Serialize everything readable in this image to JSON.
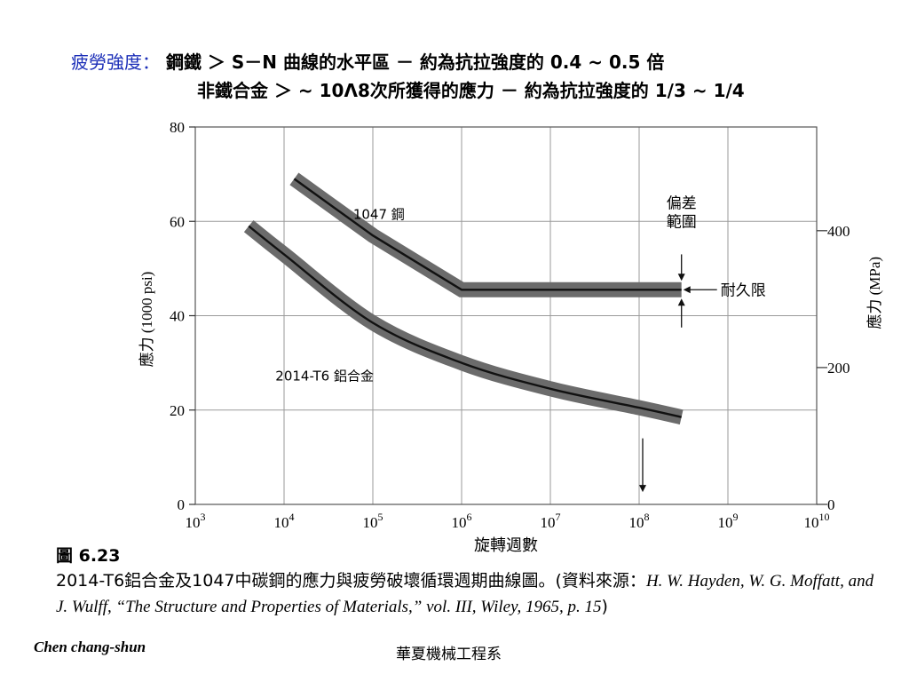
{
  "header": {
    "line1_label": "疲勞強度：",
    "line1_text": "鋼鐵 ＞ S－N 曲線的水平區 － 約為抗拉強度的 0.4 ~ 0.5 倍",
    "line2_text": "非鐵合金 ＞ ~ 10Λ8次所獲得的應力 － 約為抗拉強度的 1/3 ~ 1/4"
  },
  "chart_data": {
    "type": "line",
    "xlabel": "旋轉週數",
    "ylabel": "應力 (1000 psi)",
    "ylabel_right": "應力 (MPa)",
    "x_scale": "log",
    "xlim": [
      1000,
      10000000000
    ],
    "ylim": [
      0,
      80
    ],
    "y2lim": [
      0,
      551.6
    ],
    "x_ticks": [
      {
        "base": "10",
        "exp": "3"
      },
      {
        "base": "10",
        "exp": "4"
      },
      {
        "base": "10",
        "exp": "5"
      },
      {
        "base": "10",
        "exp": "6"
      },
      {
        "base": "10",
        "exp": "7"
      },
      {
        "base": "10",
        "exp": "8"
      },
      {
        "base": "10",
        "exp": "9"
      },
      {
        "base": "10",
        "exp": "10"
      }
    ],
    "y_ticks": [
      "0",
      "20",
      "40",
      "60",
      "80"
    ],
    "y2_ticks": [
      {
        "label": "0",
        "value": 0
      },
      {
        "label": "200",
        "value": 200
      },
      {
        "label": "400",
        "value": 400
      }
    ],
    "grid": true,
    "series": [
      {
        "name": "1047 鋼",
        "x": [
          13000,
          100000,
          1000000,
          10000000,
          100000000,
          300000000
        ],
        "y": [
          69,
          57,
          45.5,
          45.5,
          45.5,
          45.5
        ]
      },
      {
        "name": "2014-T6 鋁合金",
        "x": [
          4000,
          10000,
          100000,
          1000000,
          10000000,
          100000000,
          300000000
        ],
        "y": [
          59,
          53,
          38.5,
          30,
          24.5,
          20.5,
          18.5
        ]
      }
    ],
    "annotations": {
      "scatter_band": "偏差\n範圍",
      "endurance_limit": "耐久限"
    },
    "marker_x": 100000000
  },
  "caption": {
    "figure_number": "圖 6.23",
    "text": "2014-T6鋁合金及1047中碳鋼的應力與疲勞破壞循環週期曲線圖。(資料來源：",
    "reference": "H. W. Hayden, W. G. Moffatt, and J. Wulff, “The Structure and Properties of Materials,” vol. III, Wiley, 1965, p. 15",
    "closing": ")"
  },
  "author": "Chen chang-shun",
  "footer": "華夏機械工程系",
  "colors": {
    "header_label": "#1c2fb8",
    "band": "#6b6b6b",
    "line": "#111111",
    "grid": "#9a9a9a"
  }
}
